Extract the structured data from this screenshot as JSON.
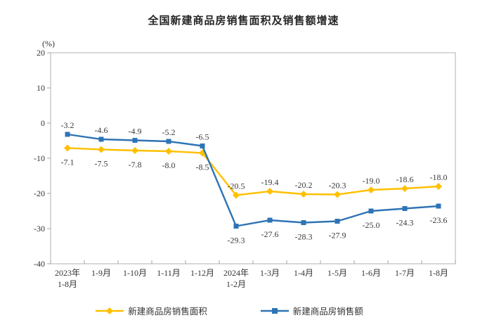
{
  "title": "全国新建商品房销售面积及销售额增速",
  "chart_data": {
    "type": "line",
    "title": "全国新建商品房销售面积及销售额增速",
    "unit_label": "(%)",
    "categories": [
      "2023年\n1-8月",
      "1-9月",
      "1-10月",
      "1-11月",
      "1-12月",
      "2024年\n1-2月",
      "1-3月",
      "1-4月",
      "1-5月",
      "1-6月",
      "1-7月",
      "1-8月"
    ],
    "yticks": [
      20,
      10,
      0,
      -10,
      -20,
      -30,
      -40
    ],
    "ylim": [
      -40,
      20
    ],
    "grid": false,
    "legend_position": "bottom",
    "axis_color": "#bfbfbf",
    "tick_color": "#a6a6a6",
    "label_color": "#3a3a3a",
    "series": [
      {
        "name": "新建商品房销售面积",
        "color": "#FFC000",
        "marker": "diamond",
        "values": [
          -7.1,
          -7.5,
          -7.8,
          -8.0,
          -8.5,
          -20.5,
          -19.4,
          -20.2,
          -20.3,
          -19.0,
          -18.6,
          -18.0
        ],
        "label_side": [
          "below",
          "below",
          "below",
          "below",
          "below",
          "above",
          "above",
          "above",
          "above",
          "above",
          "above",
          "above"
        ]
      },
      {
        "name": "新建商品房销售额",
        "color": "#2E74B5",
        "marker": "square",
        "values": [
          -3.2,
          -4.6,
          -4.9,
          -5.2,
          -6.5,
          -29.3,
          -27.6,
          -28.3,
          -27.9,
          -25.0,
          -24.3,
          -23.6
        ],
        "label_side": [
          "above",
          "above",
          "above",
          "above",
          "above",
          "below",
          "below",
          "below",
          "below",
          "below",
          "below",
          "below"
        ]
      }
    ]
  }
}
